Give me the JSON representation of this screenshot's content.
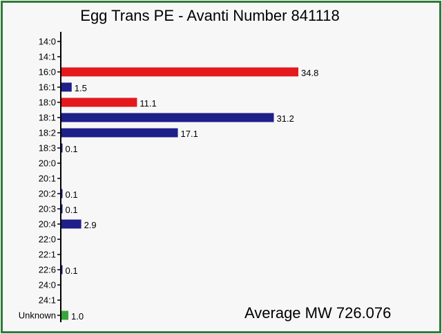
{
  "chart_data": {
    "type": "bar",
    "orientation": "horizontal",
    "title": "Egg Trans PE - Avanti Number 841118",
    "annotation": "Average MW 726.076",
    "categories": [
      "14:0",
      "14:1",
      "16:0",
      "16:1",
      "18:0",
      "18:1",
      "18:2",
      "18:3",
      "20:0",
      "20:1",
      "20:2",
      "20:3",
      "20:4",
      "22:0",
      "22:1",
      "22:6",
      "24:0",
      "24:1",
      "Unknown"
    ],
    "values": [
      null,
      null,
      34.8,
      1.5,
      11.1,
      31.2,
      17.1,
      0.1,
      null,
      null,
      0.1,
      0.1,
      2.9,
      null,
      null,
      0.1,
      null,
      null,
      1.0
    ],
    "value_labels": [
      "",
      "",
      "34.8",
      "1.5",
      "11.1",
      "31.2",
      "17.1",
      "0.1",
      "",
      "",
      "0.1",
      "0.1",
      "2.9",
      "",
      "",
      "0.1",
      "",
      "",
      "1.0"
    ],
    "bar_colors": [
      "#1f1f8a",
      "#1f1f8a",
      "#e3191c",
      "#1f1f8a",
      "#e3191c",
      "#1f1f8a",
      "#1f1f8a",
      "#1f1f8a",
      "#1f1f8a",
      "#1f1f8a",
      "#1f1f8a",
      "#1f1f8a",
      "#1f1f8a",
      "#1f1f8a",
      "#1f1f8a",
      "#1f1f8a",
      "#1f1f8a",
      "#1f1f8a",
      "#3aa63a"
    ],
    "xlim": [
      0,
      40
    ],
    "grid": false,
    "legend": "none",
    "colors": {
      "saturated": "#e3191c",
      "unsaturated": "#1f1f8a",
      "unknown": "#3aa63a",
      "border": "#2f7a3a",
      "background": "#f7f7f7"
    }
  }
}
